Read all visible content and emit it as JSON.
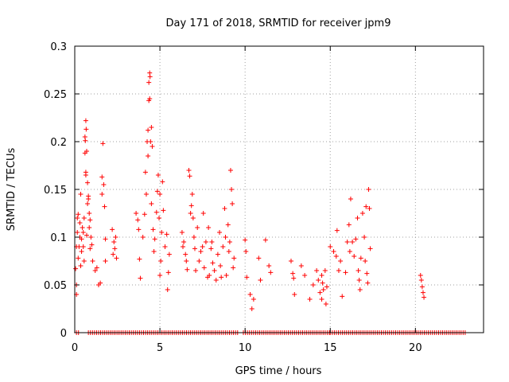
{
  "chart_data": {
    "type": "scatter",
    "title": "Day 171 of 2018, SRMTID for receiver jpm9",
    "xlabel": "GPS time / hours",
    "ylabel": "SRMTID / TECUs",
    "xlim": [
      0,
      24
    ],
    "ylim": [
      0,
      0.3
    ],
    "xticks": [
      0,
      5,
      10,
      15,
      20
    ],
    "xtick_labels": [
      "0",
      "5",
      "10",
      "15",
      "20"
    ],
    "yticks": [
      0,
      0.05,
      0.1,
      0.15,
      0.2,
      0.25,
      0.3
    ],
    "ytick_labels": [
      "0",
      "0.05",
      "0.1",
      "0.15",
      "0.2",
      "0.25",
      "0.3"
    ],
    "grid": true,
    "marker": "+",
    "series": [
      {
        "name": "SRMTID",
        "color": "#ff0000",
        "points": [
          [
            0.05,
            0.067
          ],
          [
            0.1,
            0.04
          ],
          [
            0.1,
            0.05
          ],
          [
            0.1,
            0.09
          ],
          [
            0.15,
            0.12
          ],
          [
            0.15,
            0.105
          ],
          [
            0.2,
            0.124
          ],
          [
            0.2,
            0.078
          ],
          [
            0.25,
            0.09
          ],
          [
            0.3,
            0.115
          ],
          [
            0.3,
            0.1
          ],
          [
            0.35,
            0.145
          ],
          [
            0.35,
            0.07
          ],
          [
            0.4,
            0.098
          ],
          [
            0.4,
            0.085
          ],
          [
            0.45,
            0.11
          ],
          [
            0.5,
            0.105
          ],
          [
            0.5,
            0.09
          ],
          [
            0.55,
            0.075
          ],
          [
            0.55,
            0.12
          ],
          [
            0.6,
            0.188
          ],
          [
            0.6,
            0.205
          ],
          [
            0.62,
            0.201
          ],
          [
            0.65,
            0.165
          ],
          [
            0.65,
            0.168
          ],
          [
            0.65,
            0.222
          ],
          [
            0.67,
            0.213
          ],
          [
            0.7,
            0.19
          ],
          [
            0.7,
            0.102
          ],
          [
            0.75,
            0.135
          ],
          [
            0.75,
            0.157
          ],
          [
            0.8,
            0.143
          ],
          [
            0.8,
            0.14
          ],
          [
            0.85,
            0.125
          ],
          [
            0.85,
            0.11
          ],
          [
            0.9,
            0.118
          ],
          [
            0.9,
            0.088
          ],
          [
            0.95,
            0.1
          ],
          [
            1.0,
            0.092
          ],
          [
            1.05,
            0.075
          ],
          [
            1.2,
            0.065
          ],
          [
            1.3,
            0.068
          ],
          [
            1.4,
            0.05
          ],
          [
            1.5,
            0.052
          ],
          [
            1.6,
            0.163
          ],
          [
            1.6,
            0.145
          ],
          [
            1.65,
            0.198
          ],
          [
            1.7,
            0.155
          ],
          [
            1.75,
            0.132
          ],
          [
            1.8,
            0.075
          ],
          [
            1.8,
            0.098
          ],
          [
            2.2,
            0.108
          ],
          [
            2.25,
            0.082
          ],
          [
            2.3,
            0.095
          ],
          [
            2.35,
            0.088
          ],
          [
            2.4,
            0.1
          ],
          [
            2.45,
            0.078
          ],
          [
            3.6,
            0.125
          ],
          [
            3.7,
            0.118
          ],
          [
            3.75,
            0.108
          ],
          [
            3.8,
            0.077
          ],
          [
            3.85,
            0.057
          ],
          [
            4.0,
            0.1
          ],
          [
            4.1,
            0.124
          ],
          [
            4.15,
            0.168
          ],
          [
            4.2,
            0.145
          ],
          [
            4.25,
            0.2
          ],
          [
            4.3,
            0.185
          ],
          [
            4.3,
            0.212
          ],
          [
            4.35,
            0.243
          ],
          [
            4.35,
            0.262
          ],
          [
            4.4,
            0.272
          ],
          [
            4.4,
            0.245
          ],
          [
            4.42,
            0.268
          ],
          [
            4.45,
            0.2
          ],
          [
            4.5,
            0.215
          ],
          [
            4.5,
            0.135
          ],
          [
            4.55,
            0.195
          ],
          [
            4.6,
            0.108
          ],
          [
            4.65,
            0.085
          ],
          [
            4.7,
            0.098
          ],
          [
            4.8,
            0.126
          ],
          [
            4.85,
            0.148
          ],
          [
            4.9,
            0.165
          ],
          [
            4.95,
            0.12
          ],
          [
            5.0,
            0.145
          ],
          [
            5.0,
            0.06
          ],
          [
            5.05,
            0.075
          ],
          [
            5.1,
            0.105
          ],
          [
            5.15,
            0.158
          ],
          [
            5.2,
            0.128
          ],
          [
            5.3,
            0.09
          ],
          [
            5.4,
            0.103
          ],
          [
            5.45,
            0.045
          ],
          [
            5.5,
            0.063
          ],
          [
            5.55,
            0.082
          ],
          [
            6.3,
            0.105
          ],
          [
            6.35,
            0.09
          ],
          [
            6.4,
            0.095
          ],
          [
            6.5,
            0.082
          ],
          [
            6.55,
            0.075
          ],
          [
            6.6,
            0.066
          ],
          [
            6.7,
            0.17
          ],
          [
            6.75,
            0.164
          ],
          [
            6.8,
            0.125
          ],
          [
            6.85,
            0.133
          ],
          [
            6.9,
            0.145
          ],
          [
            6.95,
            0.12
          ],
          [
            7.0,
            0.1
          ],
          [
            7.05,
            0.088
          ],
          [
            7.1,
            0.065
          ],
          [
            7.2,
            0.11
          ],
          [
            7.3,
            0.075
          ],
          [
            7.4,
            0.085
          ],
          [
            7.5,
            0.09
          ],
          [
            7.55,
            0.125
          ],
          [
            7.6,
            0.068
          ],
          [
            7.7,
            0.095
          ],
          [
            7.8,
            0.058
          ],
          [
            7.85,
            0.11
          ],
          [
            7.9,
            0.06
          ],
          [
            8.0,
            0.088
          ],
          [
            8.05,
            0.095
          ],
          [
            8.1,
            0.073
          ],
          [
            8.2,
            0.065
          ],
          [
            8.3,
            0.055
          ],
          [
            8.4,
            0.082
          ],
          [
            8.5,
            0.105
          ],
          [
            8.55,
            0.07
          ],
          [
            8.6,
            0.058
          ],
          [
            8.7,
            0.09
          ],
          [
            8.8,
            0.13
          ],
          [
            8.85,
            0.1
          ],
          [
            8.9,
            0.06
          ],
          [
            9.0,
            0.113
          ],
          [
            9.05,
            0.085
          ],
          [
            9.1,
            0.095
          ],
          [
            9.15,
            0.17
          ],
          [
            9.2,
            0.15
          ],
          [
            9.25,
            0.135
          ],
          [
            9.3,
            0.068
          ],
          [
            9.35,
            0.078
          ],
          [
            10.0,
            0.097
          ],
          [
            10.05,
            0.085
          ],
          [
            10.1,
            0.058
          ],
          [
            10.3,
            0.04
          ],
          [
            10.4,
            0.025
          ],
          [
            10.5,
            0.035
          ],
          [
            10.8,
            0.078
          ],
          [
            10.9,
            0.055
          ],
          [
            11.2,
            0.097
          ],
          [
            11.4,
            0.07
          ],
          [
            11.5,
            0.063
          ],
          [
            12.7,
            0.075
          ],
          [
            12.8,
            0.062
          ],
          [
            12.85,
            0.057
          ],
          [
            12.9,
            0.04
          ],
          [
            13.3,
            0.07
          ],
          [
            13.5,
            0.06
          ],
          [
            13.8,
            0.035
          ],
          [
            14.0,
            0.05
          ],
          [
            14.2,
            0.065
          ],
          [
            14.3,
            0.055
          ],
          [
            14.4,
            0.042
          ],
          [
            14.5,
            0.06
          ],
          [
            14.5,
            0.035
          ],
          [
            14.55,
            0.052
          ],
          [
            14.6,
            0.045
          ],
          [
            14.7,
            0.065
          ],
          [
            14.75,
            0.03
          ],
          [
            14.8,
            0.048
          ],
          [
            15.0,
            0.09
          ],
          [
            15.2,
            0.085
          ],
          [
            15.35,
            0.08
          ],
          [
            15.4,
            0.107
          ],
          [
            15.5,
            0.065
          ],
          [
            15.6,
            0.075
          ],
          [
            15.7,
            0.038
          ],
          [
            15.9,
            0.063
          ],
          [
            16.0,
            0.095
          ],
          [
            16.1,
            0.113
          ],
          [
            16.15,
            0.085
          ],
          [
            16.2,
            0.14
          ],
          [
            16.3,
            0.095
          ],
          [
            16.4,
            0.08
          ],
          [
            16.5,
            0.098
          ],
          [
            16.6,
            0.12
          ],
          [
            16.65,
            0.065
          ],
          [
            16.7,
            0.055
          ],
          [
            16.75,
            0.045
          ],
          [
            16.8,
            0.078
          ],
          [
            16.9,
            0.125
          ],
          [
            17.0,
            0.1
          ],
          [
            17.05,
            0.075
          ],
          [
            17.1,
            0.132
          ],
          [
            17.15,
            0.062
          ],
          [
            17.2,
            0.052
          ],
          [
            17.25,
            0.15
          ],
          [
            17.3,
            0.13
          ],
          [
            17.35,
            0.088
          ],
          [
            20.3,
            0.06
          ],
          [
            20.35,
            0.055
          ],
          [
            20.4,
            0.048
          ],
          [
            20.45,
            0.042
          ],
          [
            20.5,
            0.037
          ]
        ]
      }
    ],
    "baseline_zero_ranges": [
      [
        0.1,
        0.3
      ],
      [
        0.8,
        9.6
      ],
      [
        9.9,
        15.0
      ],
      [
        15.0,
        23.0
      ]
    ]
  }
}
